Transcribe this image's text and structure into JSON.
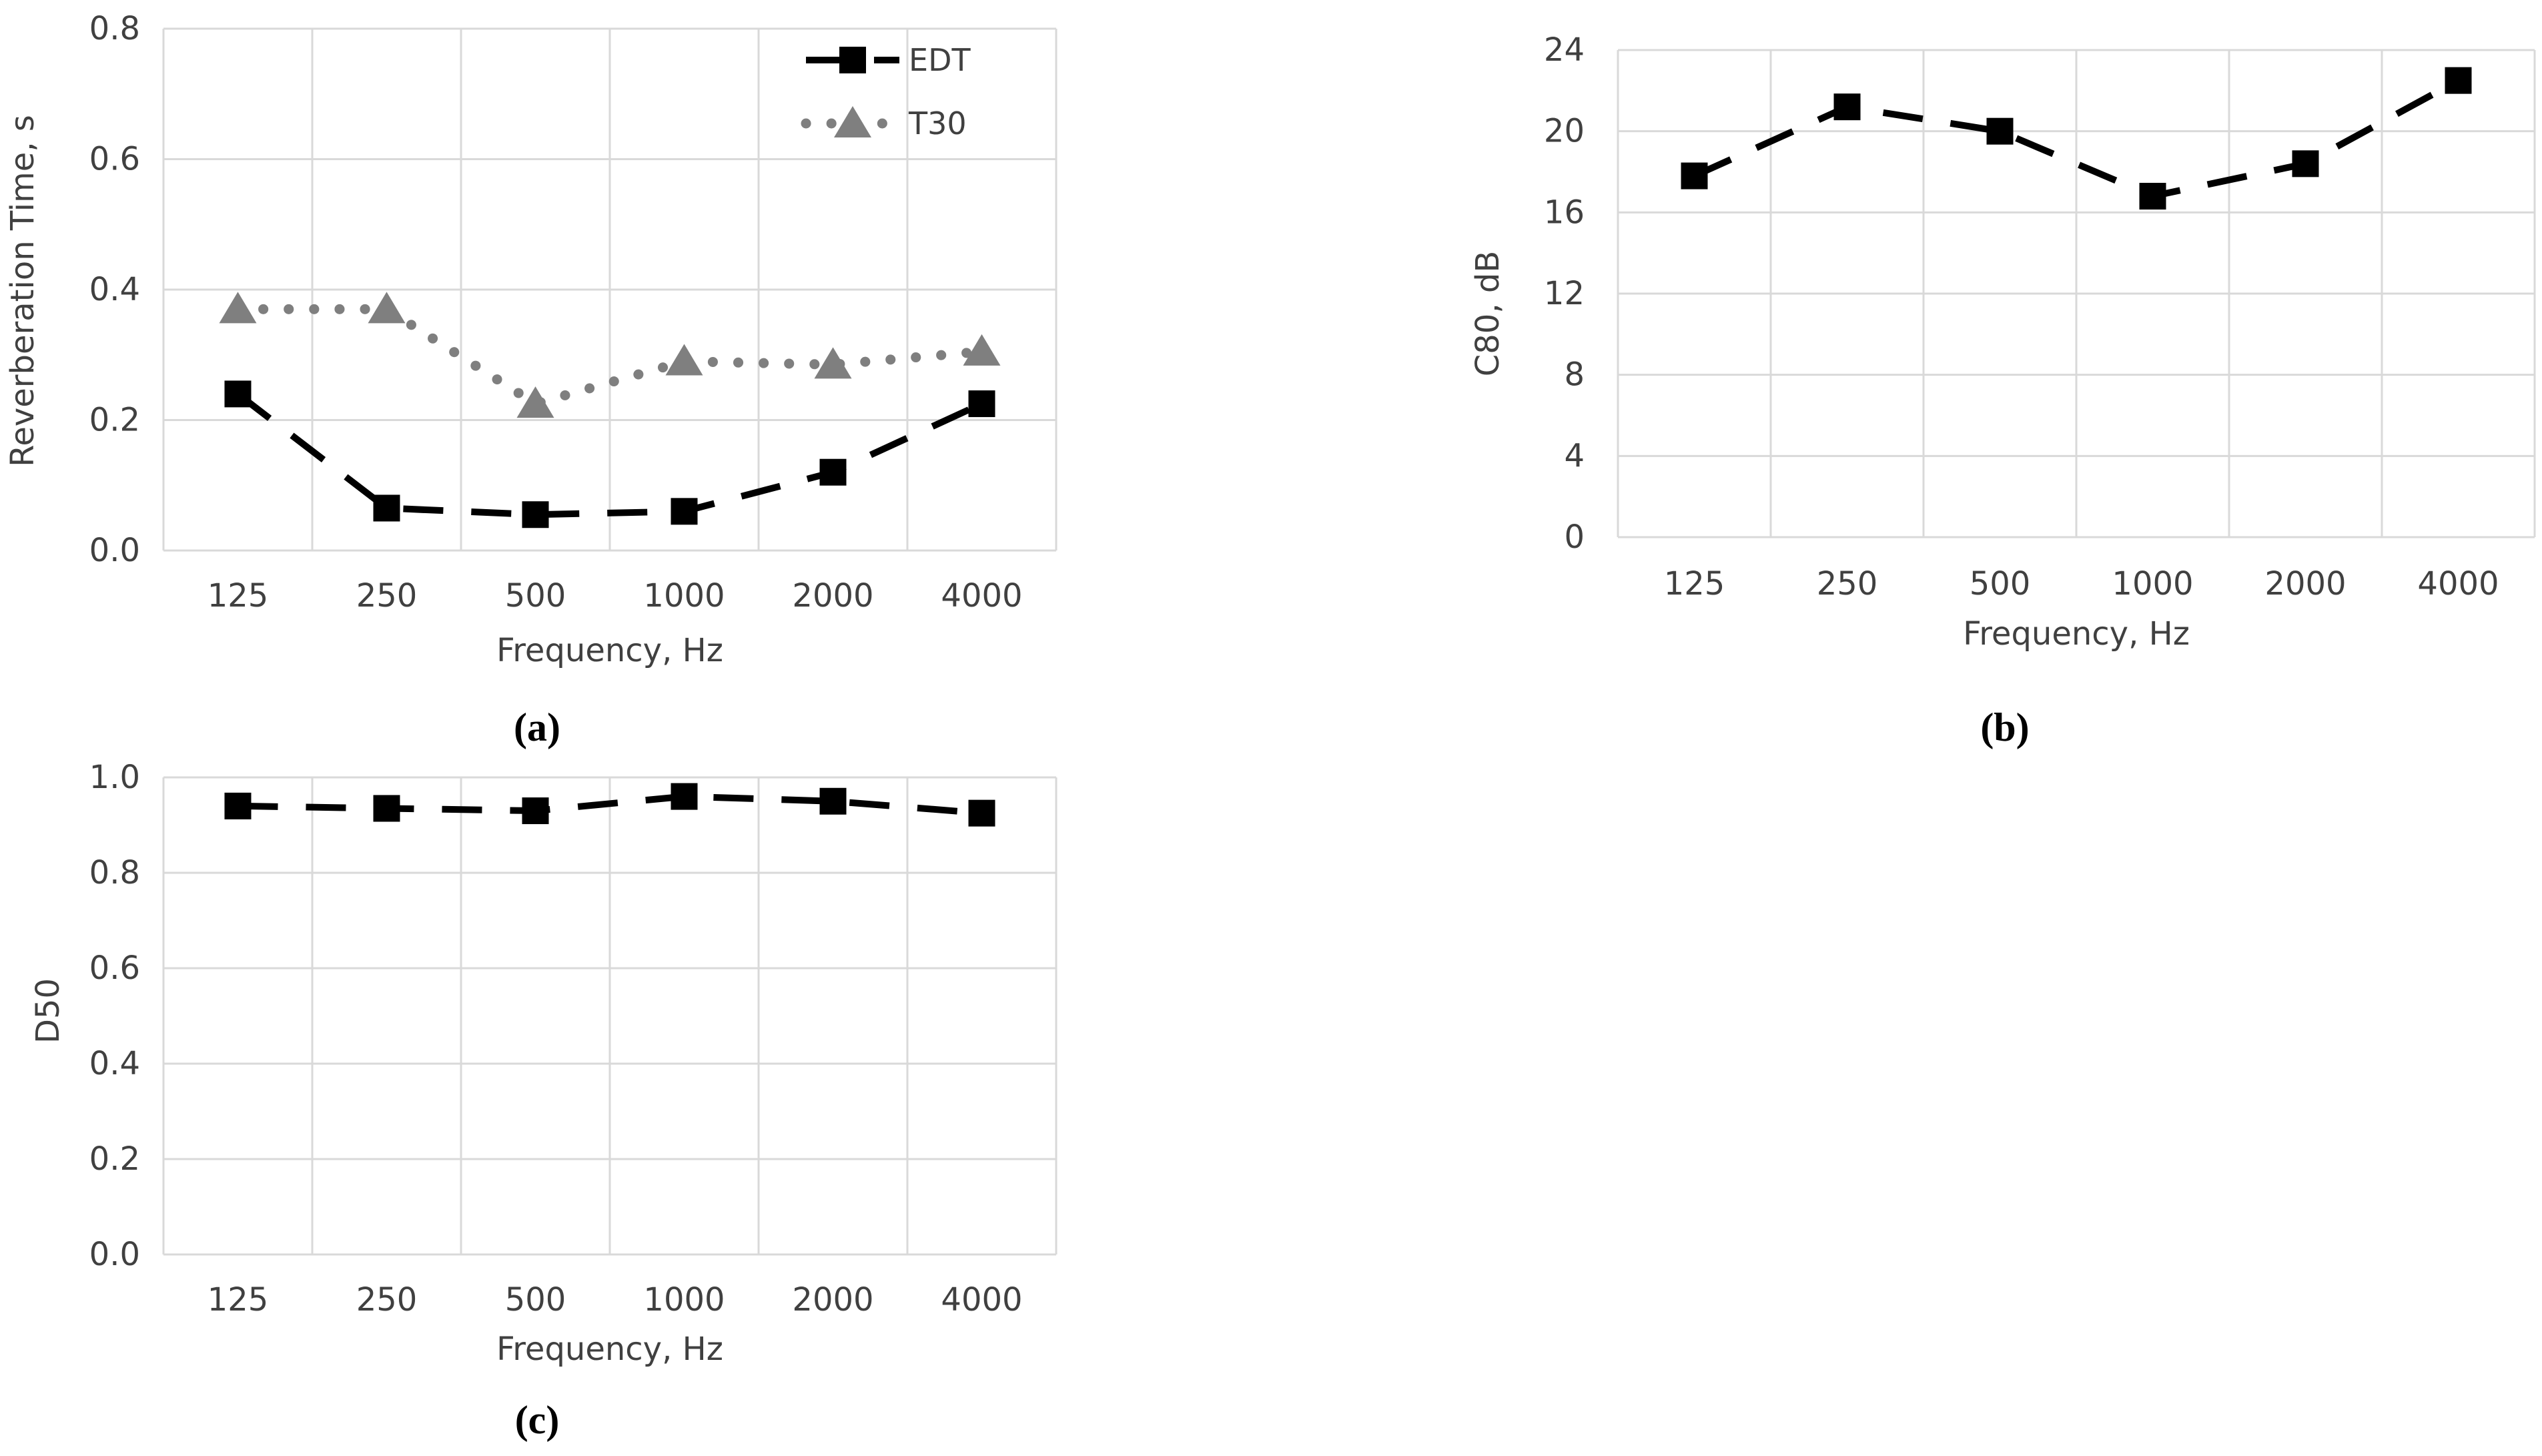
{
  "style": {
    "background": "#ffffff",
    "text_color": "#404040",
    "grid_color": "#d9d9d9",
    "caption_color": "#000000",
    "edt_color": "#000000",
    "t30_color": "#7f7f7f"
  },
  "chart_data": [
    {
      "id": "a",
      "type": "line",
      "caption": "(a)",
      "xlabel": "Frequency, Hz",
      "ylabel": "Reverberation Time, s",
      "categories": [
        "125",
        "250",
        "500",
        "1000",
        "2000",
        "4000"
      ],
      "series": [
        {
          "name": "EDT",
          "values": [
            0.24,
            0.065,
            0.055,
            0.06,
            0.12,
            0.225
          ],
          "color": "#000000",
          "marker": "square",
          "linestyle": "dashed"
        },
        {
          "name": "T30",
          "values": [
            0.37,
            0.37,
            0.225,
            0.29,
            0.285,
            0.305
          ],
          "color": "#7f7f7f",
          "marker": "triangle",
          "linestyle": "dotted"
        }
      ],
      "ylim": [
        0,
        0.8
      ],
      "yticks": [
        0,
        0.2,
        0.4,
        0.6,
        0.8
      ],
      "ytick_labels": [
        "0.0",
        "0.2",
        "0.4",
        "0.6",
        "0.8"
      ],
      "grid": true,
      "legend": {
        "show": true,
        "position": "top-right",
        "entries": [
          "EDT",
          "T30"
        ]
      }
    },
    {
      "id": "b",
      "type": "line",
      "caption": "(b)",
      "xlabel": "Frequency, Hz",
      "ylabel": "C80, dB",
      "categories": [
        "125",
        "250",
        "500",
        "1000",
        "2000",
        "4000"
      ],
      "series": [
        {
          "name": "C80",
          "values": [
            17.8,
            21.2,
            20.0,
            16.8,
            18.4,
            22.5
          ],
          "color": "#000000",
          "marker": "square",
          "linestyle": "dashed"
        }
      ],
      "ylim": [
        0,
        24
      ],
      "yticks": [
        0,
        4,
        8,
        12,
        16,
        20,
        24
      ],
      "ytick_labels": [
        "0",
        "4",
        "8",
        "12",
        "16",
        "20",
        "24"
      ],
      "grid": true,
      "legend": {
        "show": false,
        "entries": []
      }
    },
    {
      "id": "c",
      "type": "line",
      "caption": "(c)",
      "xlabel": "Frequency, Hz",
      "ylabel": "D50",
      "categories": [
        "125",
        "250",
        "500",
        "1000",
        "2000",
        "4000"
      ],
      "series": [
        {
          "name": "D50",
          "values": [
            0.94,
            0.935,
            0.93,
            0.96,
            0.95,
            0.925
          ],
          "color": "#000000",
          "marker": "square",
          "linestyle": "dashed"
        }
      ],
      "ylim": [
        0,
        1.0
      ],
      "yticks": [
        0,
        0.2,
        0.4,
        0.6,
        0.8,
        1.0
      ],
      "ytick_labels": [
        "0.0",
        "0.2",
        "0.4",
        "0.6",
        "0.8",
        "1.0"
      ],
      "grid": true,
      "legend": {
        "show": false,
        "entries": []
      }
    }
  ]
}
